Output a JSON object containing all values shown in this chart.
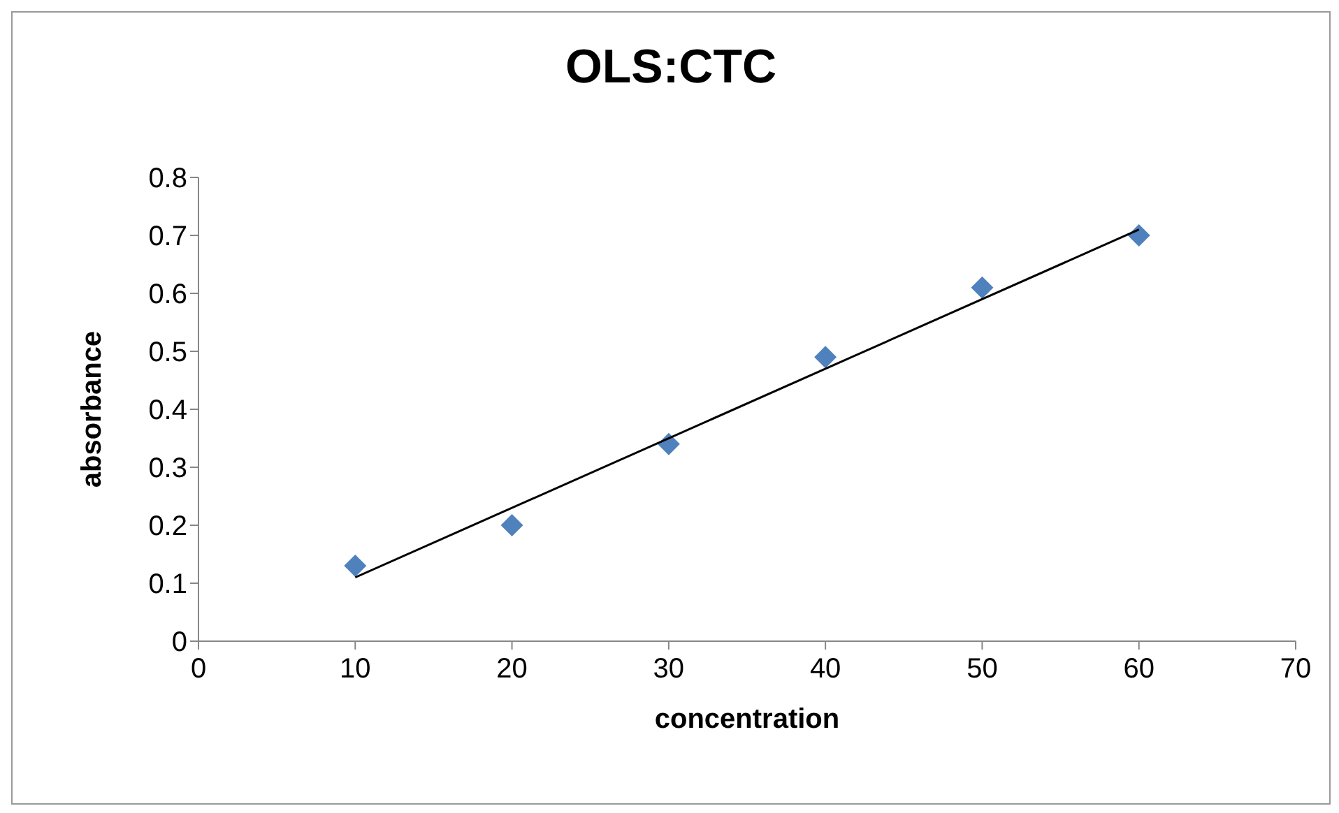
{
  "chart_data": {
    "type": "scatter",
    "title": "OLS:CTC",
    "xlabel": "concentration",
    "ylabel": "absorbance",
    "x": [
      10,
      20,
      30,
      40,
      50,
      60
    ],
    "series": [
      {
        "color": "#4f81bd",
        "marker": "diamond",
        "values": [
          0.13,
          0.2,
          0.34,
          0.49,
          0.61,
          0.7
        ]
      },
      {
        "type": "line",
        "color": "#000000",
        "marker": "none",
        "x": [
          10,
          60
        ],
        "values": [
          0.11,
          0.71
        ]
      }
    ],
    "xlim": [
      0,
      70
    ],
    "xticks": [
      0,
      10,
      20,
      30,
      40,
      50,
      60,
      70
    ],
    "ylim": [
      0,
      0.8
    ],
    "yticks": [
      0,
      0.1,
      0.2,
      0.3,
      0.4,
      0.5,
      0.6,
      0.7,
      0.8
    ],
    "grid": false,
    "legend": false
  }
}
